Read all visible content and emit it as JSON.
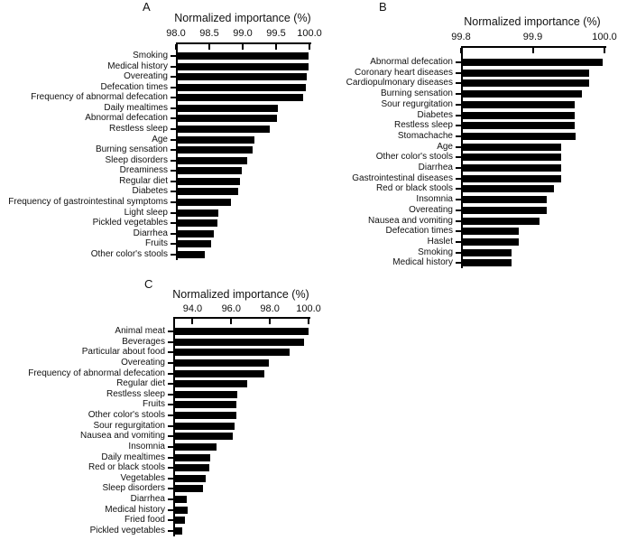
{
  "figure": {
    "background_color": "#ffffff",
    "bar_color": "#000000",
    "axis_color": "#000000",
    "text_color": "#111111"
  },
  "chart_data": [
    {
      "panel": "A",
      "type": "bar",
      "orientation": "horizontal",
      "title": "Normalized importance (%)",
      "xlabel": "Normalized importance (%)",
      "ylabel": "",
      "grid": false,
      "legend": null,
      "xlim": [
        98.0,
        100.0
      ],
      "xticks": [
        "98.0",
        "98.5",
        "99.0",
        "99.5",
        "100.0"
      ],
      "categories": [
        "Smoking",
        "Medical history",
        "Overeating",
        "Defecation times",
        "Frequency of abnormal defecation",
        "Daily mealtimes",
        "Abnormal defecation",
        "Restless sleep",
        "Age",
        "Burning sensation",
        "Sleep disorders",
        "Dreaminess",
        "Regular diet",
        "Diabetes",
        "Frequency of gastrointestinal symptoms",
        "Light sleep",
        "Pickled vegetables",
        "Diarrhea",
        "Fruits",
        "Other color's stools"
      ],
      "values": [
        99.99,
        99.98,
        99.96,
        99.95,
        99.91,
        99.53,
        99.51,
        99.4,
        99.18,
        99.15,
        99.07,
        98.99,
        98.96,
        98.93,
        98.83,
        98.63,
        98.62,
        98.57,
        98.53,
        98.43
      ]
    },
    {
      "panel": "B",
      "type": "bar",
      "orientation": "horizontal",
      "title": "Normalized importance (%)",
      "xlabel": "Normalized importance (%)",
      "ylabel": "",
      "grid": false,
      "legend": null,
      "xlim": [
        99.8,
        100.0
      ],
      "xticks": [
        "99.8",
        "99.9",
        "100.0"
      ],
      "categories": [
        "Abnormal defecation",
        "Coronary heart diseases",
        "Cardiopulmonary diseases",
        "Burning sensation",
        "Sour regurgitation",
        "Diabetes",
        "Restless sleep",
        "Stomachache",
        "Age",
        "Other color's stools",
        "Diarrhea",
        "Gastrointestinal diseases",
        "Red or black stools",
        "Insomnia",
        "Overeating",
        "Nausea and vomiting",
        "Defecation times",
        "Haslet",
        "Smoking",
        "Medical history"
      ],
      "values": [
        99.998,
        99.979,
        99.979,
        99.969,
        99.959,
        99.959,
        99.959,
        99.96,
        99.94,
        99.94,
        99.94,
        99.94,
        99.929,
        99.92,
        99.92,
        99.909,
        99.881,
        99.881,
        99.87,
        99.87
      ]
    },
    {
      "panel": "C",
      "type": "bar",
      "orientation": "horizontal",
      "title": "Normalized importance (%)",
      "xlabel": "Normalized importance (%)",
      "ylabel": "",
      "grid": false,
      "legend": null,
      "xlim": [
        93.0,
        100.0
      ],
      "xticks": [
        "94.0",
        "96.0",
        "98.0",
        "100.0"
      ],
      "categories": [
        "Animal meat",
        "Beverages",
        "Particular about food",
        "Overeating",
        "Frequency of abnormal defecation",
        "Regular diet",
        "Restless sleep",
        "Fruits",
        "Other color's stools",
        "Sour regurgitation",
        "Nausea and vomiting",
        "Insomnia",
        "Daily mealtimes",
        "Red or black stools",
        "Vegetables",
        "Sleep disorders",
        "Diarrhea",
        "Medical history",
        "Fried food",
        "Pickled vegetables"
      ],
      "values": [
        99.98,
        99.76,
        99.01,
        97.94,
        97.73,
        96.83,
        96.33,
        96.28,
        96.26,
        96.15,
        96.07,
        95.24,
        94.9,
        94.86,
        94.7,
        94.54,
        93.72,
        93.73,
        93.61,
        93.45
      ]
    }
  ]
}
